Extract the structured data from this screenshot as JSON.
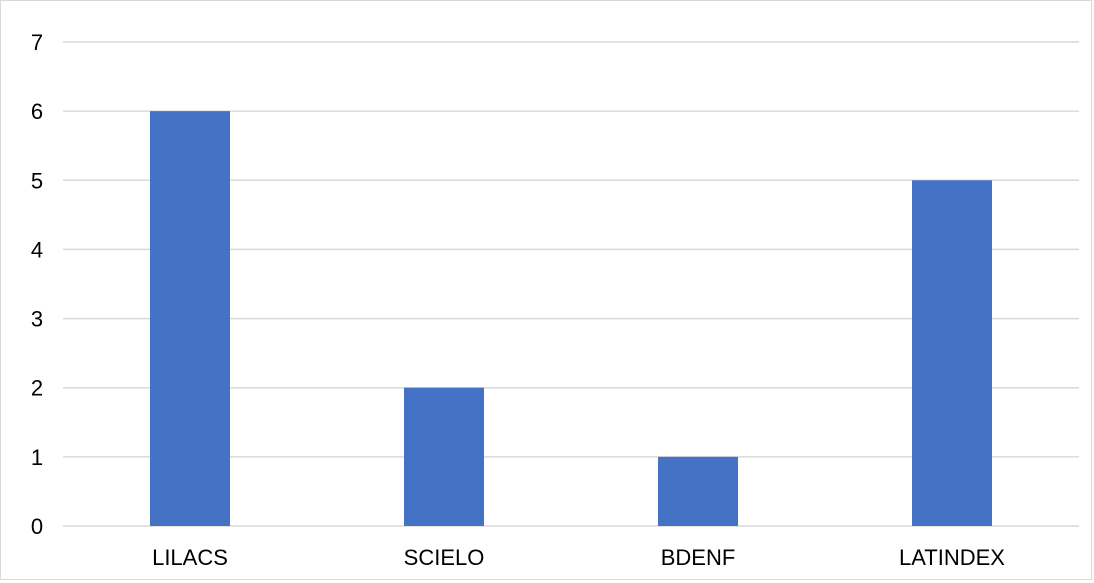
{
  "chart_data": {
    "type": "bar",
    "title": "",
    "xlabel": "",
    "ylabel": "",
    "categories": [
      "LILACS",
      "SCIELO",
      "BDENF",
      "LATINDEX"
    ],
    "values": [
      6,
      2,
      1,
      5
    ],
    "ylim": [
      0,
      7
    ],
    "yticks": [
      0,
      1,
      2,
      3,
      4,
      5,
      6,
      7
    ],
    "grid": true,
    "legend": "none",
    "bar_color": "#4472c4",
    "grid_color": "#d9d9d9"
  }
}
